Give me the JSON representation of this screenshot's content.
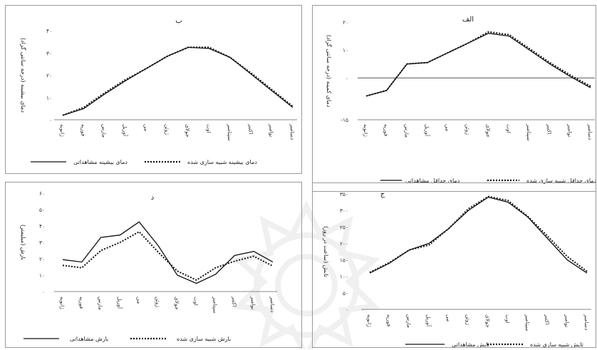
{
  "months": [
    "ژانویه",
    "فوریه",
    "مارس",
    "آوریل",
    "می",
    "ژوئن",
    "جولای",
    "اوت",
    "سپتامبر",
    "اکتبر",
    "نوامبر",
    "دسامبر"
  ],
  "chart_data": [
    {
      "id": "b",
      "type": "line",
      "title": "ب",
      "ylabel": "دمای بیشینه (درجه سانتی گراد)",
      "ylim": [
        0,
        40
      ],
      "yticks": [
        0,
        10,
        20,
        30,
        40
      ],
      "ytick_labels": [
        "۰",
        "۱۰",
        "۲۰",
        "۳۰",
        "۴۰"
      ],
      "grid": false,
      "legend_position": "bottom",
      "series": [
        {
          "name": "دمای بیشینه مشاهداتی",
          "style": "solid",
          "values": [
            2,
            5,
            11.5,
            17.5,
            23,
            28.5,
            32.5,
            32,
            28,
            20.5,
            13,
            5.5
          ]
        },
        {
          "name": "دمای بیشینه شبیه سازی شده",
          "style": "dotted",
          "values": [
            2,
            5.5,
            12,
            18,
            23,
            28.5,
            32.5,
            32.5,
            28,
            21,
            13.5,
            6
          ]
        }
      ]
    },
    {
      "id": "a",
      "type": "line",
      "title": "الف",
      "ylabel": "دمای کمینه (درجه سانتی گراد)",
      "ylim": [
        -15,
        20
      ],
      "yticks": [
        -15,
        0,
        10,
        20
      ],
      "ytick_labels": [
        "-۱۵",
        "۰",
        "۱۰",
        "۲۰"
      ],
      "grid": false,
      "legend_position": "bottom",
      "series": [
        {
          "name": "دمای حداقل مشاهداتی",
          "style": "solid",
          "values": [
            -6.5,
            -4.5,
            5,
            5.5,
            9,
            12.5,
            16,
            15,
            10,
            5,
            0.5,
            -3.5
          ]
        },
        {
          "name": "دمای حداقل شبیه سازی شده",
          "style": "dotted",
          "values": [
            -6.5,
            -4.5,
            5,
            5.5,
            9,
            12.5,
            16.5,
            15.5,
            10.5,
            5.5,
            1,
            -3
          ]
        }
      ]
    },
    {
      "id": "d",
      "type": "line",
      "title": "د",
      "ylabel": "بارش (میلیمتر)",
      "ylim": [
        0,
        60
      ],
      "yticks": [
        0,
        10,
        20,
        30,
        40,
        50,
        60
      ],
      "ytick_labels": [
        "۰",
        "۱۰",
        "۲۰",
        "۳۰",
        "۴۰",
        "۵۰",
        "۶۰"
      ],
      "grid": false,
      "legend_position": "bottom",
      "series": [
        {
          "name": "بارش مشاهداتی",
          "style": "solid",
          "values": [
            19.5,
            18,
            33,
            34.5,
            42.5,
            28,
            10,
            5,
            10.5,
            22,
            24.5,
            18
          ]
        },
        {
          "name": "بارش شبیه سازی شده",
          "style": "dotted",
          "values": [
            16,
            14.5,
            25,
            30,
            36.5,
            24,
            12.5,
            7,
            14.5,
            18.5,
            21.5,
            15.5
          ]
        }
      ]
    },
    {
      "id": "j",
      "type": "line",
      "title": "ج",
      "ylabel": "تابش (ساعت در روز)",
      "ylim": [
        0,
        350
      ],
      "yticks": [
        0,
        50,
        100,
        150,
        200,
        250,
        300,
        350
      ],
      "ytick_labels": [
        "۰",
        "۵۰",
        "۱۰۰",
        "۱۵۰",
        "۲۰۰",
        "۲۵۰",
        "۳۰۰",
        "۳۵۰"
      ],
      "grid": false,
      "legend_position": "bottom",
      "series": [
        {
          "name": "تابش مشاهداتی",
          "style": "solid",
          "values": [
            110,
            140,
            180,
            200,
            245,
            300,
            340,
            325,
            280,
            215,
            150,
            110
          ]
        },
        {
          "name": "تابش شبیه سازی شده",
          "style": "dotted",
          "values": [
            112,
            142,
            180,
            195,
            245,
            305,
            342,
            330,
            282,
            222,
            160,
            115
          ]
        }
      ]
    }
  ]
}
